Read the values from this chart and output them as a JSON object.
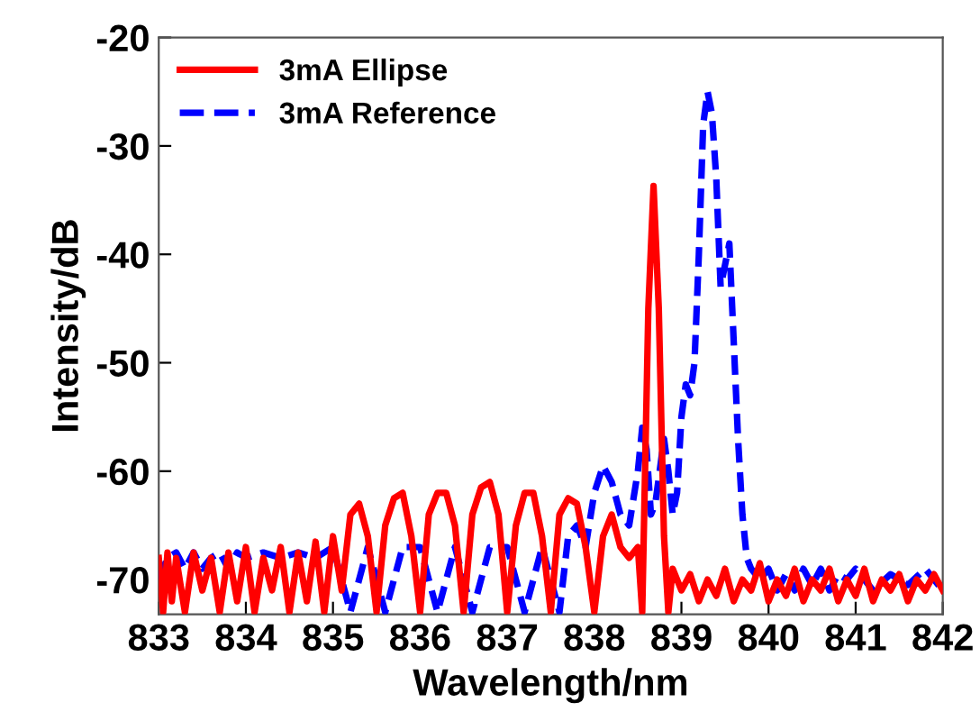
{
  "chart_data": {
    "type": "line",
    "xlabel": "Wavelength/nm",
    "ylabel": "Intensity/dB",
    "xlim": [
      833,
      842
    ],
    "xticks": [
      833,
      834,
      835,
      836,
      837,
      838,
      839,
      840,
      841,
      842
    ],
    "ylim": [
      -73.2,
      -20
    ],
    "yticks": [
      -70,
      -60,
      -50,
      -40,
      -30,
      -20
    ],
    "grid": false,
    "legend": "top left",
    "marker": "none",
    "series": [
      {
        "name": "3mA Ellipse",
        "color": "#ff0000",
        "line_style": "solid",
        "x": [
          833.0,
          833.05,
          833.1,
          833.15,
          833.2,
          833.3,
          833.4,
          833.5,
          833.6,
          833.7,
          833.8,
          833.9,
          834.0,
          834.1,
          834.2,
          834.3,
          834.4,
          834.5,
          834.6,
          834.7,
          834.8,
          834.9,
          835.0,
          835.1,
          835.2,
          835.3,
          835.4,
          835.5,
          835.6,
          835.7,
          835.8,
          835.9,
          836.0,
          836.1,
          836.2,
          836.3,
          836.4,
          836.5,
          836.6,
          836.7,
          836.8,
          836.9,
          837.0,
          837.1,
          837.2,
          837.3,
          837.4,
          837.5,
          837.6,
          837.7,
          837.8,
          837.9,
          838.0,
          838.1,
          838.2,
          838.3,
          838.4,
          838.5,
          838.55,
          838.62,
          838.68,
          838.74,
          838.8,
          838.85,
          838.9,
          839.0,
          839.1,
          839.2,
          839.3,
          839.4,
          839.5,
          839.6,
          839.7,
          839.8,
          839.9,
          840.0,
          840.1,
          840.2,
          840.3,
          840.4,
          840.5,
          840.6,
          840.7,
          840.8,
          840.9,
          841.0,
          841.1,
          841.2,
          841.3,
          841.4,
          841.5,
          841.6,
          841.7,
          841.8,
          841.9,
          842.0
        ],
        "values": [
          -68,
          -73,
          -67.5,
          -72,
          -68,
          -73,
          -67.5,
          -71,
          -68,
          -73,
          -67.5,
          -72,
          -67,
          -73,
          -68,
          -71,
          -67,
          -73,
          -67.5,
          -72,
          -66.5,
          -73,
          -66,
          -71,
          -64,
          -63,
          -66,
          -73,
          -65,
          -62.5,
          -62,
          -66,
          -73,
          -64,
          -62,
          -62,
          -65,
          -73,
          -64,
          -61.5,
          -61,
          -64,
          -73,
          -65,
          -62,
          -62,
          -66,
          -73,
          -64,
          -62.5,
          -63,
          -67,
          -73,
          -66,
          -64,
          -67,
          -68,
          -67,
          -73,
          -45,
          -33.7,
          -45,
          -66,
          -73,
          -69,
          -71,
          -69.5,
          -72,
          -70,
          -71.5,
          -69,
          -72,
          -70,
          -71,
          -68.5,
          -72,
          -70,
          -71.5,
          -69,
          -72,
          -70,
          -71,
          -69,
          -72,
          -70,
          -71.5,
          -69,
          -72,
          -70,
          -71,
          -69.5,
          -72,
          -70,
          -71,
          -69.5,
          -71
        ]
      },
      {
        "name": "3mA Reference",
        "color": "#0000ff",
        "line_style": "dashed",
        "x": [
          833.0,
          833.1,
          833.2,
          833.3,
          833.4,
          833.5,
          833.6,
          833.7,
          833.8,
          833.9,
          834.0,
          834.2,
          834.4,
          834.6,
          834.8,
          835.0,
          835.2,
          835.4,
          835.6,
          835.8,
          836.0,
          836.2,
          836.4,
          836.6,
          836.8,
          837.0,
          837.2,
          837.4,
          837.6,
          837.7,
          837.8,
          837.9,
          838.0,
          838.1,
          838.2,
          838.3,
          838.4,
          838.5,
          838.55,
          838.6,
          838.65,
          838.7,
          838.8,
          838.85,
          838.9,
          838.95,
          839.0,
          839.05,
          839.1,
          839.15,
          839.2,
          839.25,
          839.3,
          839.35,
          839.4,
          839.45,
          839.5,
          839.55,
          839.6,
          839.65,
          839.7,
          839.75,
          839.8,
          839.9,
          840.0,
          840.1,
          840.2,
          840.3,
          840.4,
          840.5,
          840.6,
          840.7,
          840.8,
          840.9,
          841.0,
          841.2,
          841.4,
          841.6,
          841.8,
          842.0
        ],
        "values": [
          -70,
          -68,
          -67.5,
          -69,
          -67.5,
          -69,
          -68,
          -67.5,
          -69,
          -67.5,
          -68,
          -67.5,
          -68,
          -67.5,
          -68,
          -67,
          -73,
          -67,
          -73,
          -67,
          -67,
          -73,
          -67,
          -73,
          -67,
          -67,
          -73,
          -67,
          -73,
          -66,
          -65,
          -67,
          -62,
          -59.5,
          -61,
          -64,
          -65,
          -60,
          -56,
          -58,
          -64,
          -63,
          -57,
          -60,
          -64,
          -62,
          -55,
          -52,
          -53,
          -50,
          -40,
          -28,
          -25,
          -27,
          -33,
          -43,
          -41,
          -39,
          -48,
          -57,
          -64,
          -68,
          -69,
          -70,
          -69,
          -71,
          -69.5,
          -71,
          -69,
          -70.5,
          -69,
          -71,
          -69.5,
          -70,
          -69,
          -71,
          -69.5,
          -70.5,
          -69,
          -71
        ]
      }
    ]
  }
}
